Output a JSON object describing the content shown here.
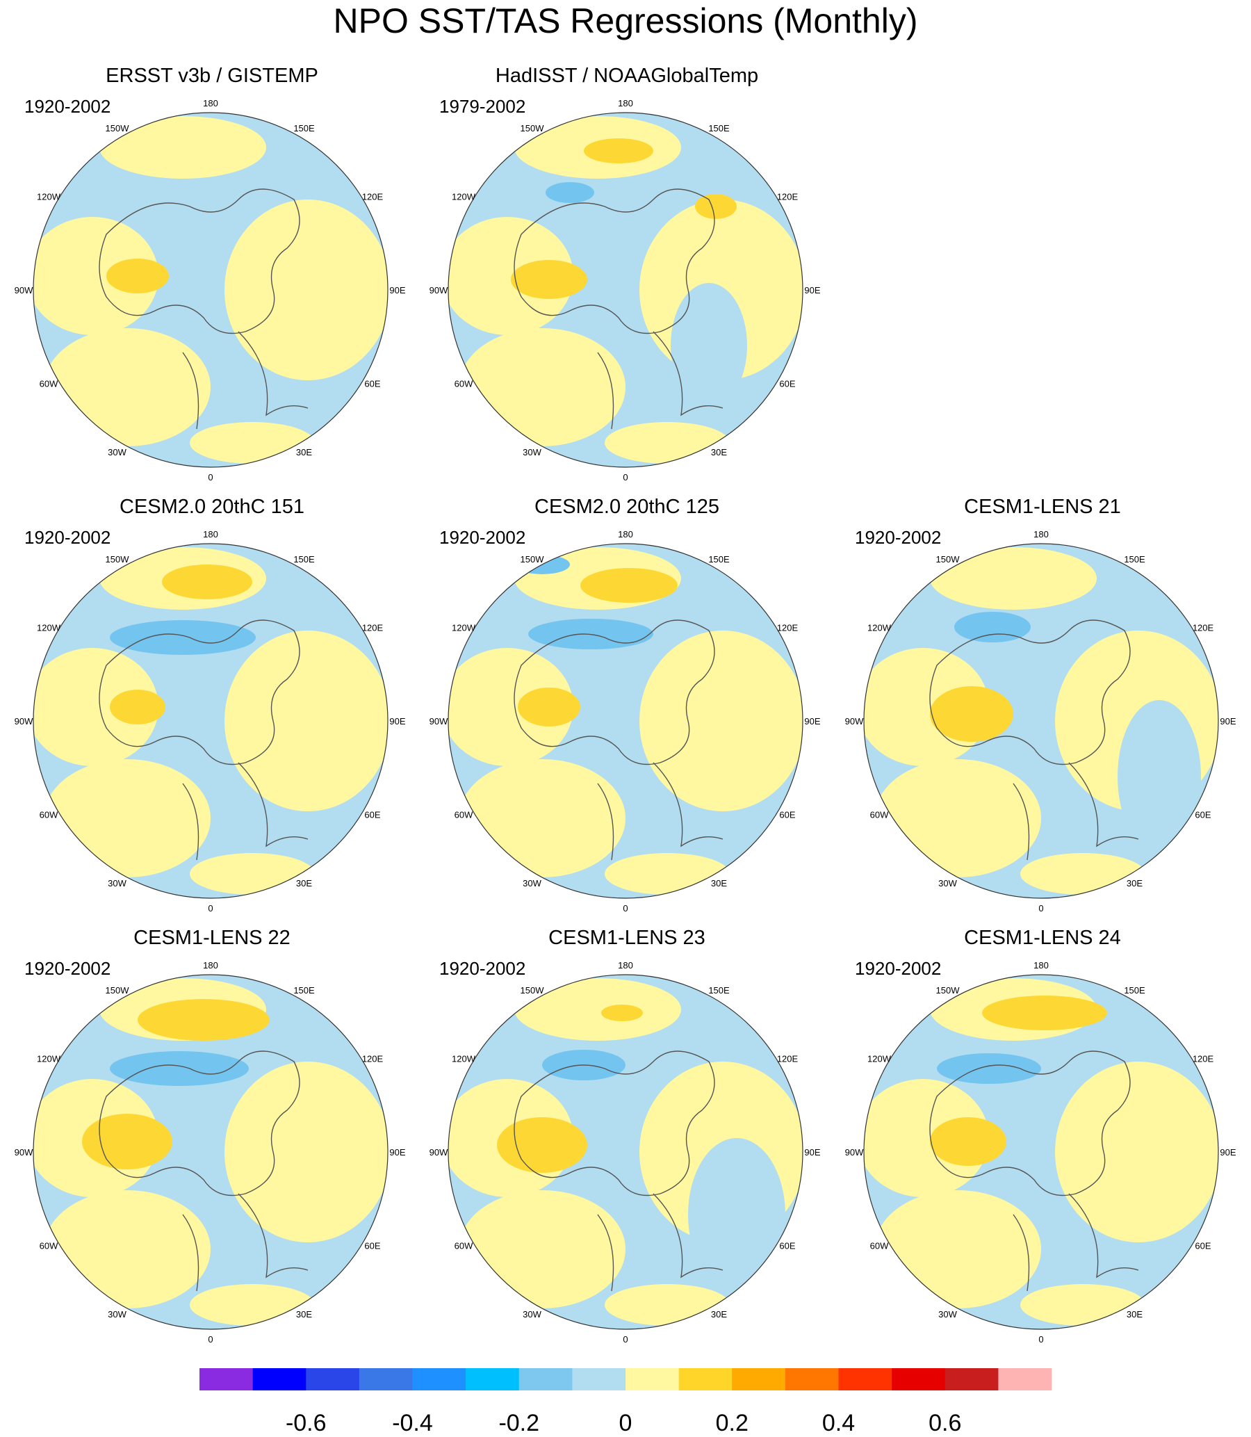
{
  "title": "NPO SST/TAS Regressions (Monthly)",
  "panels": [
    {
      "title": "ERSST v3b / GISTEMP",
      "period": "1920-2002",
      "pattern": "obs1"
    },
    {
      "title": "HadISST / NOAAGlobalTemp",
      "period": "1979-2002",
      "pattern": "obs2"
    },
    {
      "title": "CESM2.0 20thC 151",
      "period": "1920-2002",
      "pattern": "a"
    },
    {
      "title": "CESM2.0 20thC 125",
      "period": "1920-2002",
      "pattern": "b"
    },
    {
      "title": "CESM1-LENS 21",
      "period": "1920-2002",
      "pattern": "c"
    },
    {
      "title": "CESM1-LENS 22",
      "period": "1920-2002",
      "pattern": "d"
    },
    {
      "title": "CESM1-LENS 23",
      "period": "1920-2002",
      "pattern": "e"
    },
    {
      "title": "CESM1-LENS 24",
      "period": "1920-2002",
      "pattern": "f"
    }
  ],
  "longitude_labels": [
    "180",
    "150E",
    "120E",
    "90E",
    "60E",
    "30E",
    "0",
    "30W",
    "60W",
    "90W",
    "120W",
    "150W"
  ],
  "colorbar": {
    "colors": [
      "#8a2be2",
      "#0000ff",
      "#2a45e8",
      "#3a78e8",
      "#1e90ff",
      "#00bfff",
      "#7ec8f0",
      "#b2dcf0",
      "#fff8a0",
      "#ffd52a",
      "#ffaa00",
      "#ff7700",
      "#ff3300",
      "#e60000",
      "#c81e1e",
      "#ffb4b4"
    ],
    "tick_labels": [
      "-0.6",
      "-0.4",
      "-0.2",
      "0",
      "0.2",
      "0.4",
      "0.6"
    ]
  },
  "color_roles": {
    "ocean_neg": "#b2dcf0",
    "neg_strong": "#74c4f0",
    "pos": "#fff8a0",
    "pos_strong": "#fdd835",
    "land_outline": "#555555",
    "missing": "#ffffff"
  }
}
